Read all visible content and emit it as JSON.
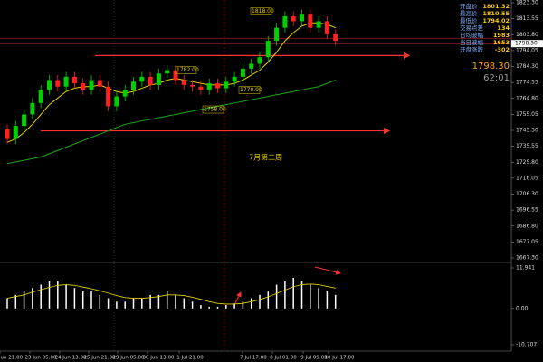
{
  "chart_data": {
    "type": "candlestick",
    "open": [
      1746,
      1740,
      1748,
      1755,
      1762,
      1770,
      1776,
      1772,
      1778,
      1774,
      1770,
      1776,
      1772,
      1760,
      1766,
      1770,
      1775,
      1778,
      1773,
      1780,
      1782,
      1776,
      1773,
      1772,
      1770,
      1774,
      1771,
      1775,
      1778,
      1783,
      1786,
      1790,
      1800,
      1808,
      1815,
      1812,
      1816,
      1808,
      1812,
      1804
    ],
    "high": [
      1749,
      1751,
      1758,
      1765,
      1773,
      1779,
      1779,
      1781,
      1781,
      1777,
      1779,
      1779,
      1775,
      1769,
      1773,
      1778,
      1781,
      1781,
      1783,
      1785,
      1785,
      1779,
      1776,
      1775,
      1777,
      1777,
      1778,
      1781,
      1786,
      1789,
      1793,
      1803,
      1811,
      1818,
      1818,
      1819,
      1819,
      1815,
      1815,
      1807
    ],
    "low": [
      1737,
      1737,
      1745,
      1752,
      1759,
      1767,
      1769,
      1769,
      1771,
      1767,
      1767,
      1769,
      1757,
      1757,
      1763,
      1767,
      1772,
      1770,
      1770,
      1777,
      1773,
      1770,
      1769,
      1767,
      1767,
      1768,
      1768,
      1772,
      1775,
      1780,
      1783,
      1787,
      1797,
      1805,
      1809,
      1809,
      1805,
      1805,
      1801,
      1797
    ],
    "close": [
      1740,
      1748,
      1755,
      1762,
      1770,
      1776,
      1772,
      1778,
      1774,
      1770,
      1776,
      1772,
      1760,
      1766,
      1770,
      1775,
      1778,
      1773,
      1780,
      1782,
      1776,
      1773,
      1772,
      1770,
      1774,
      1771,
      1775,
      1778,
      1783,
      1786,
      1790,
      1800,
      1808,
      1815,
      1812,
      1816,
      1808,
      1812,
      1804,
      1800
    ],
    "series": [
      {
        "color": "#e6d200",
        "values": [
          1738,
          1740,
          1744,
          1749,
          1755,
          1761,
          1765,
          1769,
          1771,
          1772,
          1772,
          1773,
          1771,
          1769,
          1768,
          1769,
          1771,
          1773,
          1774,
          1776,
          1777,
          1776,
          1775,
          1774,
          1773,
          1773,
          1773,
          1774,
          1776,
          1779,
          1782,
          1787,
          1793,
          1800,
          1805,
          1809,
          1811,
          1811,
          1810,
          1808
        ]
      },
      {
        "color": "#1fa31f",
        "values": [
          1725,
          1726,
          1727,
          1728,
          1729,
          1731,
          1733,
          1735,
          1737,
          1739,
          1741,
          1743,
          1745,
          1747,
          1749,
          1750,
          1751,
          1752,
          1753,
          1754,
          1755,
          1756,
          1757,
          1758,
          1759,
          1760,
          1761,
          1762,
          1763,
          1764,
          1765,
          1766,
          1767,
          1768,
          1769,
          1770,
          1771,
          1772,
          1774,
          1776
        ]
      }
    ],
    "ylim": [
      1667.3,
      1823.3
    ],
    "yticks": [
      {
        "value": 1823.3,
        "label": "1823.30"
      },
      1813.55,
      {
        "value": 1803.8,
        "label": "1803.80"
      },
      1794.05,
      {
        "value": 1784.3,
        "label": "1784.30"
      },
      1774.55,
      {
        "value": 1764.8,
        "label": "1764.80"
      },
      1755.05,
      {
        "value": 1745.3,
        "label": "1745.30"
      },
      1735.55,
      {
        "value": 1725.8,
        "label": "1725.80"
      },
      1716.05,
      {
        "value": 1706.3,
        "label": "1706.30"
      },
      1696.55,
      {
        "value": 1686.8,
        "label": "1686.80"
      },
      1677.05,
      {
        "value": 1667.3,
        "label": "1667.30"
      }
    ],
    "annotations": [
      {
        "value": 1818,
        "label": "1818.00"
      },
      {
        "value": 1782,
        "label": "1782.00"
      },
      {
        "value": 1770,
        "label": "1770.00"
      },
      {
        "value": 1758,
        "label": "1758.00"
      }
    ],
    "levels": [
      1791,
      1745
    ],
    "week_label": "7月第二周",
    "current_price": {
      "value": 1798.3,
      "label": "1798.30"
    },
    "timer": "62:01",
    "quote_info": [
      {
        "label": "开盘价",
        "value": 1801.32
      },
      {
        "label": "最高价",
        "value": 1810.55
      },
      {
        "label": "最低价",
        "value": 1794.02
      },
      {
        "label": "交易点差",
        "value": 134
      },
      {
        "label": "日均波幅",
        "value": 1983
      },
      {
        "label": "当日波幅",
        "value": 1653
      },
      {
        "label": "开盘涨跌",
        "value": -302
      }
    ],
    "time_labels": [
      "Jun 21:00",
      "23 Jun 05:00",
      "24 Jun 13:00",
      "25 Jun 21:00",
      "29 Jun 05:00",
      "30 Jun 13:00",
      "1 Jul 21:00",
      "7 Jul 17:00",
      "8 Jul 01:00",
      "9 Jul 09:00",
      "10 Jul 17:00"
    ],
    "indicator": {
      "histogram": [
        3,
        4,
        5,
        6,
        7,
        8,
        8,
        7,
        6,
        5,
        5,
        4,
        3,
        2,
        2,
        3,
        3,
        4,
        4,
        5,
        4,
        3,
        2,
        1,
        0.5,
        0.5,
        1,
        1.5,
        2,
        3,
        4,
        5,
        7,
        8,
        9,
        8,
        7,
        6,
        5,
        4
      ],
      "signal": [
        3,
        3.5,
        4,
        4.8,
        5.5,
        6.2,
        6.8,
        7,
        6.8,
        6.3,
        5.8,
        5.2,
        4.5,
        3.8,
        3.2,
        3,
        3,
        3.2,
        3.5,
        4,
        4,
        3.8,
        3.3,
        2.7,
        2,
        1.5,
        1.3,
        1.3,
        1.5,
        2,
        2.6,
        3.4,
        4.4,
        5.4,
        6.4,
        7,
        7.2,
        7,
        6.5,
        6
      ],
      "ylim": [
        -10.707,
        11.941
      ],
      "yticks": [
        11.941,
        {
          "value": 0,
          "label": "0.00"
        },
        -10.707
      ]
    }
  }
}
